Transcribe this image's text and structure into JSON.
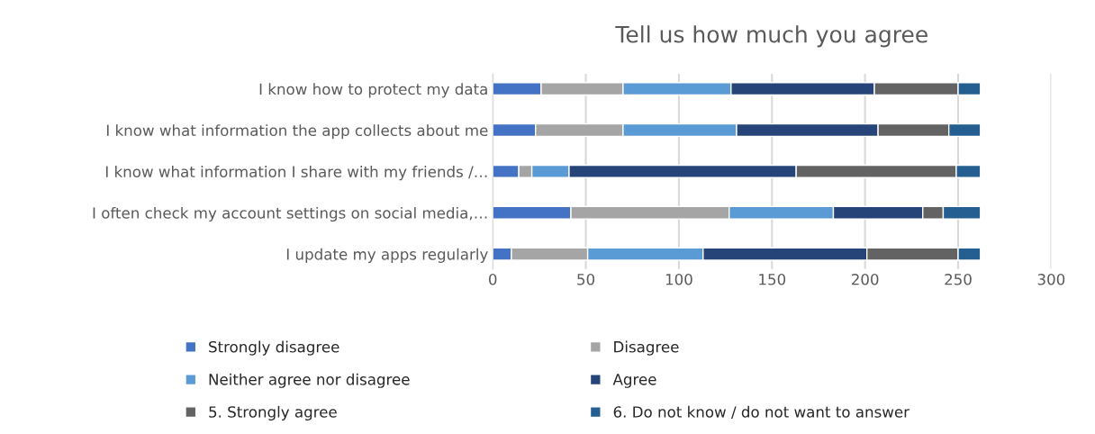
{
  "chart_data": {
    "type": "bar",
    "orientation": "horizontal",
    "stacked": true,
    "title": "Tell us how much you agree",
    "categories": [
      "I know how to protect my data",
      "I know what information the app collects about me",
      "I know what information I share with my friends /…",
      "I often check my account settings on social media,…",
      "I update my apps regularly"
    ],
    "series": [
      {
        "name": "Strongly disagree",
        "color": "#4472c4",
        "values": [
          26,
          23,
          14,
          42,
          10
        ]
      },
      {
        "name": "Disagree",
        "color": "#a5a5a5",
        "values": [
          44,
          47,
          7,
          85,
          41
        ]
      },
      {
        "name": "Neither agree nor disagree",
        "color": "#5b9bd5",
        "values": [
          58,
          61,
          20,
          56,
          62
        ]
      },
      {
        "name": "Agree",
        "color": "#264478",
        "values": [
          77,
          76,
          122,
          48,
          88
        ]
      },
      {
        "name": "5. Strongly agree",
        "color": "#636363",
        "values": [
          45,
          38,
          86,
          11,
          49
        ]
      },
      {
        "name": "6. Do not know / do not want to answer",
        "color": "#255e91",
        "values": [
          12,
          17,
          13,
          20,
          12
        ]
      }
    ],
    "xlim": [
      0,
      300
    ],
    "xticks": [
      0,
      50,
      100,
      150,
      200,
      250,
      300
    ],
    "grid": "x",
    "legend": "bottom"
  }
}
